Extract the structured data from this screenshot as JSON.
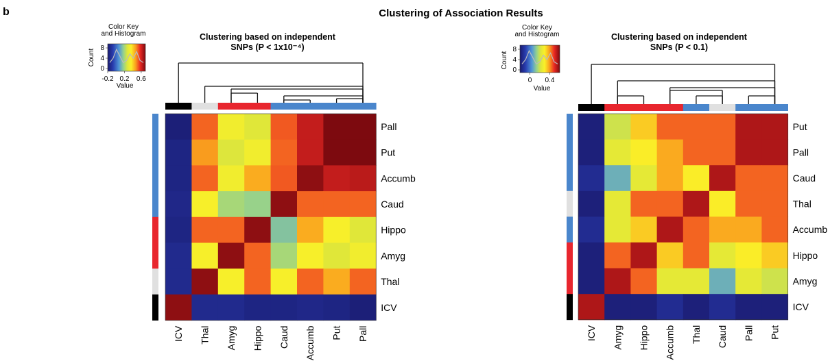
{
  "panel_letter": "b",
  "title": "Clustering of Association Results",
  "colors": {
    "cluster_blue": "#4a86cc",
    "cluster_red": "#e8262e",
    "cluster_gray": "#e0e0e0",
    "cluster_black": "#000000"
  },
  "color_key": {
    "title_line1": "Color Key",
    "title_line2": "and Histogram",
    "count_label": "Count",
    "value_label": "Value"
  },
  "chart_data": [
    {
      "type": "heatmap",
      "title_line1": "Clustering based on independent",
      "title_line2": "SNPs (P < 1x10⁻⁴)",
      "columns": [
        "ICV",
        "Thal",
        "Amyg",
        "Hippo",
        "Caud",
        "Accumb",
        "Put",
        "Pall"
      ],
      "rows": [
        "Pall",
        "Put",
        "Accumb",
        "Caud",
        "Hippo",
        "Amyg",
        "Thal",
        "ICV"
      ],
      "column_groups": [
        "black",
        "gray",
        "red",
        "red",
        "blue",
        "blue",
        "blue",
        "blue"
      ],
      "row_groups": [
        "blue",
        "blue",
        "blue",
        "blue",
        "red",
        "red",
        "gray",
        "black"
      ],
      "values": [
        [
          -0.18,
          0.52,
          0.33,
          0.28,
          0.53,
          0.62,
          0.7,
          0.7
        ],
        [
          -0.16,
          0.47,
          0.27,
          0.33,
          0.52,
          0.62,
          0.7,
          0.7
        ],
        [
          -0.16,
          0.52,
          0.33,
          0.45,
          0.53,
          0.68,
          0.62,
          0.63
        ],
        [
          -0.15,
          0.35,
          0.2,
          0.18,
          0.68,
          0.52,
          0.52,
          0.52
        ],
        [
          -0.16,
          0.52,
          0.52,
          0.68,
          0.15,
          0.45,
          0.35,
          0.28
        ],
        [
          -0.14,
          0.35,
          0.68,
          0.52,
          0.2,
          0.35,
          0.28,
          0.33
        ],
        [
          -0.14,
          0.68,
          0.35,
          0.52,
          0.35,
          0.52,
          0.45,
          0.52
        ],
        [
          0.68,
          -0.14,
          -0.14,
          -0.16,
          -0.16,
          -0.15,
          -0.16,
          -0.18
        ]
      ],
      "color_key": {
        "ticks": [
          "-0.2",
          "0.2",
          "0.6"
        ],
        "count_ticks": [
          "0",
          "4",
          "8"
        ],
        "range": [
          -0.2,
          0.7
        ]
      }
    },
    {
      "type": "heatmap",
      "title_line1": "Clustering based on independent",
      "title_line2": "SNPs (P < 0.1)",
      "columns": [
        "ICV",
        "Amyg",
        "Hippo",
        "Accumb",
        "Thal",
        "Caud",
        "Pall",
        "Put"
      ],
      "rows": [
        "Put",
        "Pall",
        "Caud",
        "Thal",
        "Accumb",
        "Hippo",
        "Amyg",
        "ICV"
      ],
      "column_groups": [
        "black",
        "red",
        "red",
        "red",
        "blue",
        "gray",
        "blue",
        "blue"
      ],
      "row_groups": [
        "blue",
        "blue",
        "blue",
        "gray",
        "blue",
        "red",
        "red",
        "black"
      ],
      "values": [
        [
          -0.18,
          0.2,
          0.34,
          0.44,
          0.44,
          0.44,
          0.55,
          0.55
        ],
        [
          -0.18,
          0.24,
          0.3,
          0.38,
          0.44,
          0.44,
          0.55,
          0.55
        ],
        [
          -0.14,
          0.08,
          0.24,
          0.38,
          0.3,
          0.55,
          0.44,
          0.44
        ],
        [
          -0.18,
          0.24,
          0.44,
          0.44,
          0.55,
          0.3,
          0.44,
          0.44
        ],
        [
          -0.14,
          0.24,
          0.34,
          0.55,
          0.44,
          0.38,
          0.38,
          0.44
        ],
        [
          -0.18,
          0.44,
          0.55,
          0.34,
          0.44,
          0.24,
          0.3,
          0.34
        ],
        [
          -0.18,
          0.55,
          0.44,
          0.24,
          0.24,
          0.08,
          0.24,
          0.2
        ],
        [
          0.55,
          -0.18,
          -0.18,
          -0.14,
          -0.18,
          -0.14,
          -0.18,
          -0.18
        ]
      ],
      "color_key": {
        "ticks": [
          "0",
          "0.4"
        ],
        "count_ticks": [
          "0",
          "4",
          "8"
        ],
        "range": [
          -0.2,
          0.6
        ]
      }
    }
  ]
}
